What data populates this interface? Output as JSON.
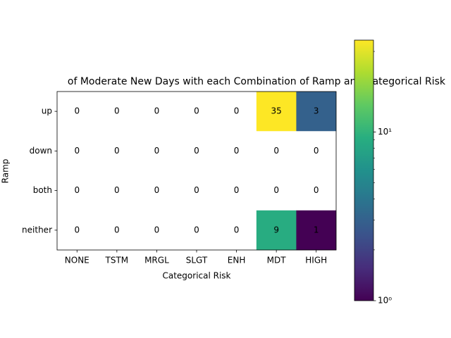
{
  "chart_data": {
    "type": "heatmap",
    "title": "of Moderate New Days with each Combination of Ramp and Categorical Risk",
    "x_label": "Categorical Risk",
    "y_label": "Ramp",
    "categories": [
      "NONE",
      "TSTM",
      "MRGL",
      "SLGT",
      "ENH",
      "MDT",
      "HIGH"
    ],
    "rows": [
      "up",
      "down",
      "both",
      "neither"
    ],
    "values": [
      [
        0,
        0,
        0,
        0,
        0,
        35,
        3
      ],
      [
        0,
        0,
        0,
        0,
        0,
        0,
        0
      ],
      [
        0,
        0,
        0,
        0,
        0,
        0,
        0
      ],
      [
        0,
        0,
        0,
        0,
        0,
        9,
        1
      ]
    ],
    "colormap": "viridis",
    "log_scale": true,
    "clim": [
      1,
      35
    ],
    "cbar_ticks": [
      {
        "value": 1,
        "label": "10⁰"
      },
      {
        "value": 10,
        "label": "10¹"
      }
    ],
    "cbar_minor_ticks": [
      2,
      3,
      4,
      5,
      6,
      7,
      8,
      9,
      20,
      30
    ]
  }
}
